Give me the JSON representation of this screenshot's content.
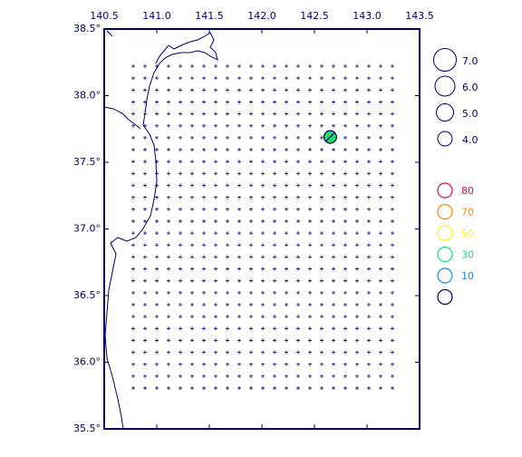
{
  "chart_data": {
    "type": "map",
    "xlim": [
      140.5,
      143.5
    ],
    "ylim": [
      35.5,
      38.5
    ],
    "xticks": [
      {
        "value": 140.5,
        "label": "140.5"
      },
      {
        "value": 141.0,
        "label": "141.0"
      },
      {
        "value": 141.5,
        "label": "141.5"
      },
      {
        "value": 142.0,
        "label": "142.0"
      },
      {
        "value": 142.5,
        "label": "142.5"
      },
      {
        "value": 143.0,
        "label": "143.0"
      },
      {
        "value": 143.5,
        "label": "143.5"
      }
    ],
    "yticks": [
      {
        "value": 35.5,
        "label": "35.5°"
      },
      {
        "value": 36.0,
        "label": "36.0°"
      },
      {
        "value": 36.5,
        "label": "36.5°"
      },
      {
        "value": 37.0,
        "label": "37.0°"
      },
      {
        "value": 37.5,
        "label": "37.5°"
      },
      {
        "value": 38.0,
        "label": "38.0°"
      },
      {
        "value": 38.5,
        "label": "38.5°"
      }
    ],
    "events": [
      {
        "lon": 142.65,
        "lat": 37.69,
        "mag": 3.3,
        "color": "#22dd66"
      }
    ],
    "magnitude_legend": {
      "values": [
        7,
        6,
        5,
        4
      ],
      "value_labels": [
        "7.0",
        "6.0",
        "5.0",
        "4.0"
      ]
    },
    "depth_legend": {
      "values": [
        80,
        70,
        50,
        30,
        10,
        null
      ],
      "colors": [
        "#cc1155",
        "#ff8800",
        "#ffee22",
        "#11dd88",
        "#1188dd",
        "#000066"
      ]
    }
  }
}
